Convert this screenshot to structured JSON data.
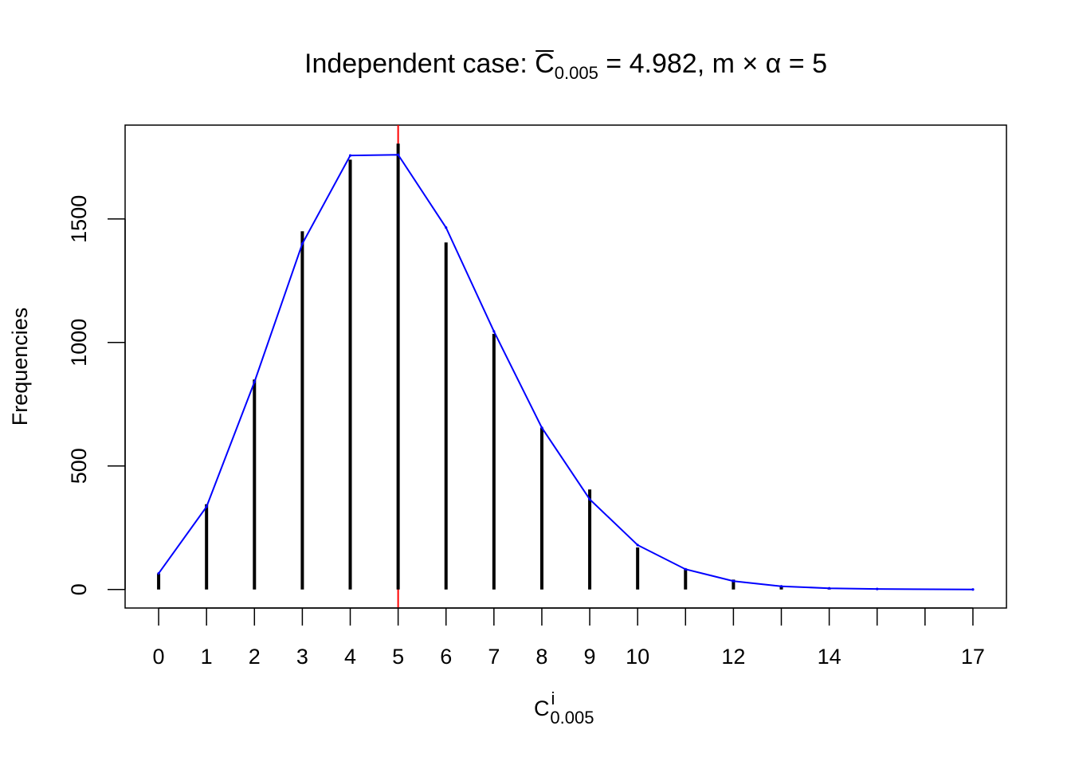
{
  "chart_data": {
    "type": "bar",
    "title": {
      "prefix": "Independent case: ",
      "symbol": "C",
      "subscript": "0.005",
      "middle": " = 4.982, m ",
      "times": "×",
      "alpha": " α",
      "suffix": " = 5"
    },
    "xlabel": {
      "symbol": "C",
      "superscript": "i",
      "subscript": "0.005"
    },
    "ylabel": "Frequencies",
    "xlim": [
      -0.7,
      17.7
    ],
    "ylim": [
      -75,
      1880
    ],
    "x_ticks": [
      0,
      1,
      2,
      3,
      4,
      5,
      6,
      7,
      8,
      9,
      10,
      11,
      12,
      13,
      14,
      15,
      16,
      17
    ],
    "x_tick_labels": [
      "0",
      "1",
      "2",
      "3",
      "4",
      "5",
      "6",
      "7",
      "8",
      "9",
      "10",
      "",
      "12",
      "",
      "14",
      "",
      "",
      "17"
    ],
    "y_ticks": [
      0,
      500,
      1000,
      1500
    ],
    "y_tick_labels": [
      "0",
      "500",
      "1000",
      "1500"
    ],
    "bars": {
      "x": [
        0,
        1,
        2,
        3,
        4,
        5,
        6,
        7,
        8,
        9,
        10,
        11,
        12,
        13,
        14,
        15
      ],
      "values": [
        65,
        345,
        850,
        1450,
        1740,
        1805,
        1405,
        1035,
        655,
        405,
        170,
        85,
        40,
        15,
        5,
        2
      ],
      "color": "#000000"
    },
    "expected_line": {
      "x": [
        0,
        1,
        2,
        3,
        4,
        5,
        6,
        7,
        8,
        9,
        10,
        11,
        12,
        13,
        14,
        15,
        17
      ],
      "values": [
        65,
        335,
        840,
        1400,
        1757,
        1760,
        1465,
        1045,
        655,
        365,
        180,
        82,
        34,
        13,
        5,
        2,
        0
      ],
      "color": "#0000ff"
    },
    "reference_line": {
      "x": 5,
      "color": "#ff0000"
    },
    "grid": false
  }
}
